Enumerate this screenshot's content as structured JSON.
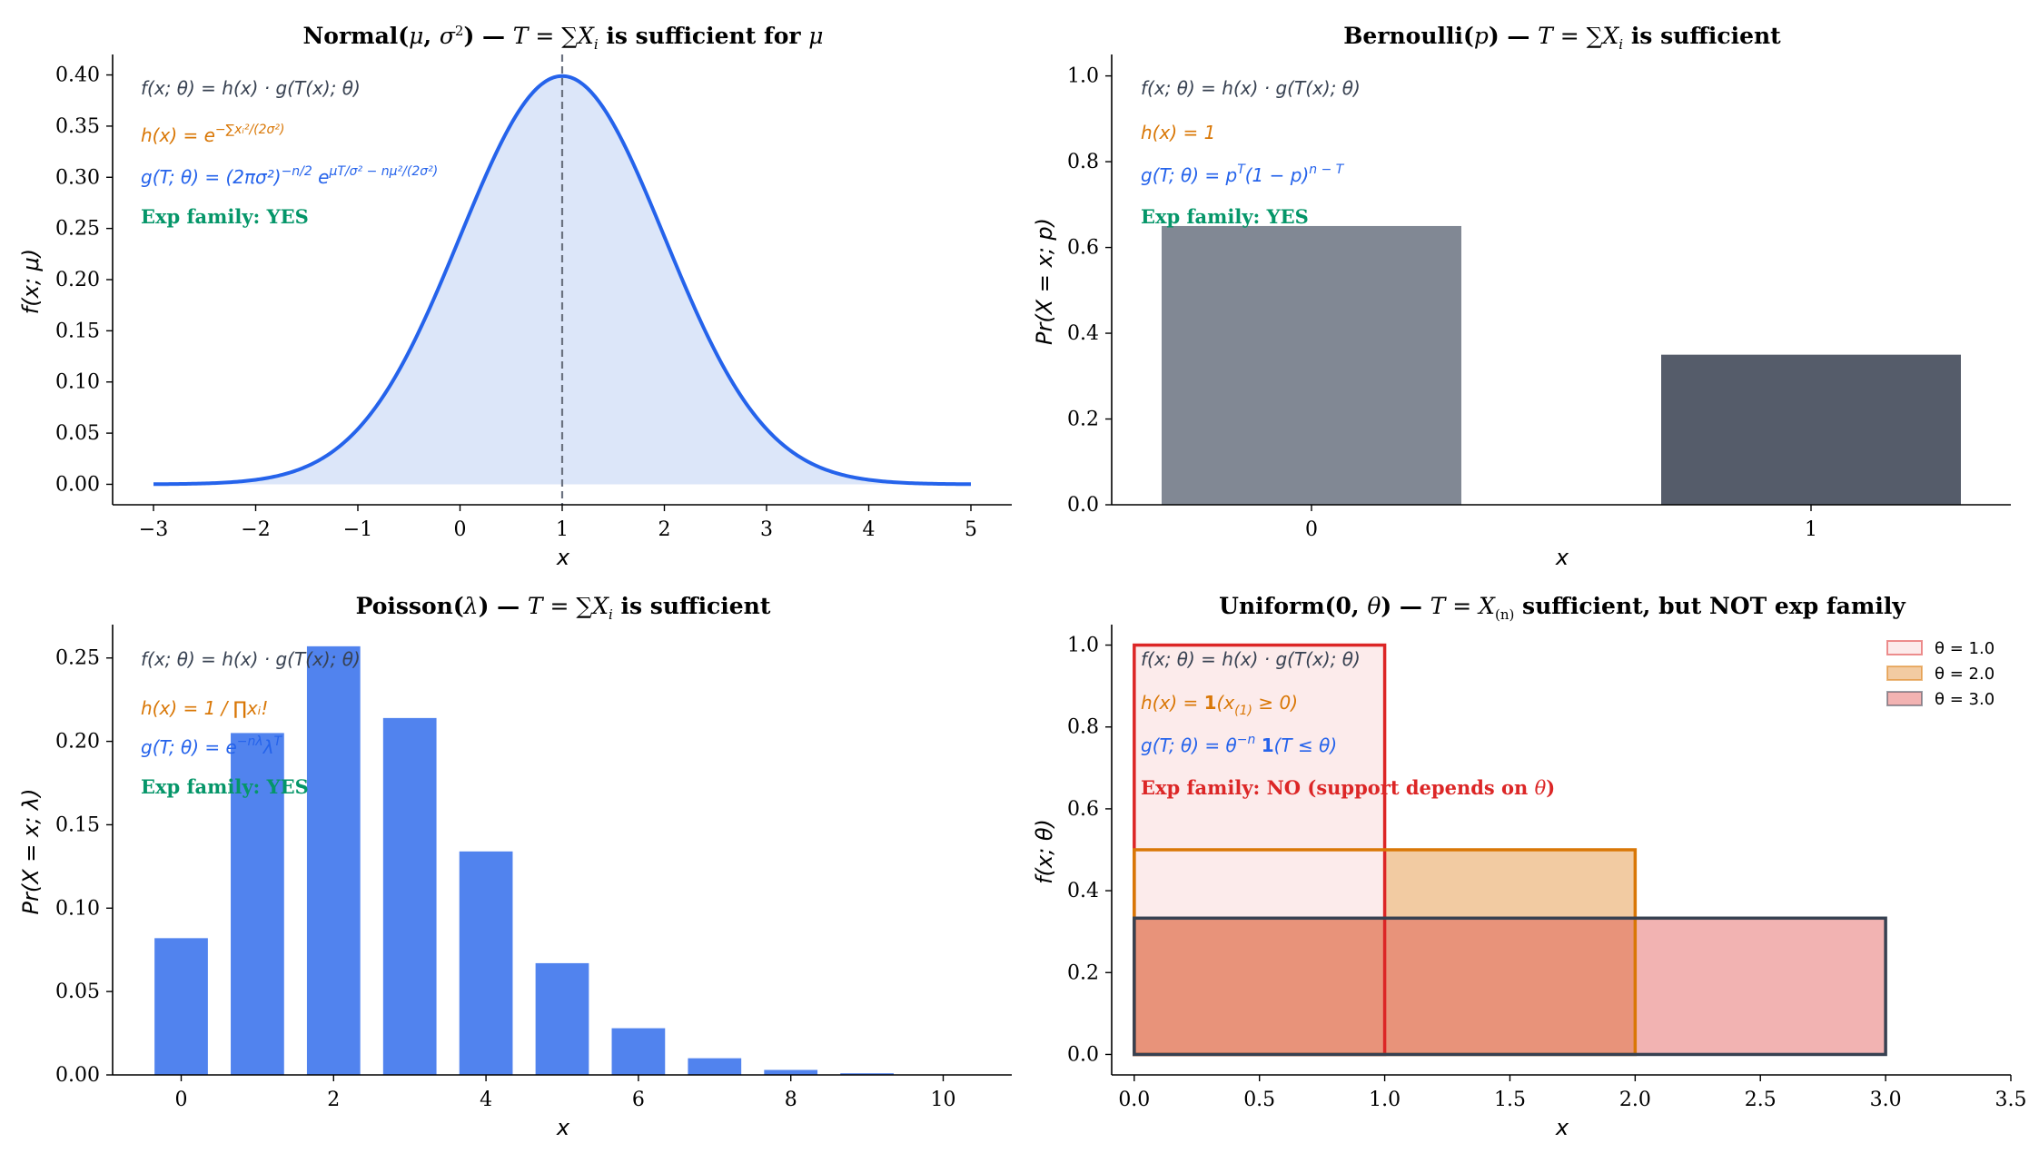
{
  "chart_data": [
    {
      "type": "area",
      "title": "Normal(μ, σ²) — T = ∑Xᵢ is sufficient for μ",
      "xlabel": "x",
      "ylabel": "f(x; μ)",
      "xlim": [
        -3.4,
        5.4
      ],
      "ylim": [
        -0.02,
        0.42
      ],
      "xticks": [
        -3,
        -2,
        -1,
        0,
        1,
        2,
        3,
        4,
        5
      ],
      "xtick_labels": [
        "−3",
        "−2",
        "−1",
        "0",
        "1",
        "2",
        "3",
        "4",
        "5"
      ],
      "yticks": [
        0,
        0.05,
        0.1,
        0.15,
        0.2,
        0.25,
        0.3,
        0.35,
        0.4
      ],
      "ytick_labels": [
        "0.00",
        "0.05",
        "0.10",
        "0.15",
        "0.20",
        "0.25",
        "0.30",
        "0.35",
        "0.40"
      ],
      "series": [
        {
          "distribution": "normal",
          "mu": 1,
          "sigma": 1,
          "x_range": [
            -3,
            5
          ],
          "color": "#2563eb"
        }
      ],
      "vline": {
        "x": 1,
        "style": "dashed"
      },
      "annotations": [
        {
          "text": "f(x; θ) = h(x) · g(T(x); θ)",
          "color": "#374151"
        },
        {
          "text": "h(x) = e^{−∑xᵢ²/(2σ²)}",
          "color": "#d97706"
        },
        {
          "text": "g(T; θ) = (2πσ²)^{−n/2} e^{μT/σ² − nμ²/(2σ²)}",
          "color": "#2563eb"
        },
        {
          "text": "Exp family: YES",
          "color": "#059669",
          "bold": true
        }
      ],
      "grid": false
    },
    {
      "type": "bar",
      "title": "Bernoulli(p) — T = ∑Xᵢ is sufficient",
      "xlabel": "x",
      "ylabel": "Pr(X = x; p)",
      "categories": [
        "0",
        "1"
      ],
      "values": [
        0.65,
        0.35
      ],
      "colors": [
        "#818894",
        "#555c6a"
      ],
      "ylim": [
        0,
        1.05
      ],
      "yticks": [
        0,
        0.2,
        0.4,
        0.6,
        0.8,
        1.0
      ],
      "ytick_labels": [
        "0.0",
        "0.2",
        "0.4",
        "0.6",
        "0.8",
        "1.0"
      ],
      "annotations": [
        {
          "text": "f(x; θ) = h(x) · g(T(x); θ)",
          "color": "#374151"
        },
        {
          "text": "h(x) = 1",
          "color": "#d97706"
        },
        {
          "text": "g(T; θ) = p^T (1 − p)^{n − T}",
          "color": "#2563eb"
        },
        {
          "text": "Exp family: YES",
          "color": "#059669",
          "bold": true
        }
      ],
      "grid": false
    },
    {
      "type": "bar",
      "title": "Poisson(λ) — T = ∑Xᵢ is sufficient",
      "xlabel": "x",
      "ylabel": "Pr(X = x; λ)",
      "categories": [
        0,
        1,
        2,
        3,
        4,
        5,
        6,
        7,
        8,
        9,
        10
      ],
      "values": [
        0.082,
        0.205,
        0.257,
        0.214,
        0.134,
        0.067,
        0.028,
        0.01,
        0.003,
        0.001,
        0.0002
      ],
      "color": "#5183ee",
      "xlim": [
        -0.9,
        10.9
      ],
      "ylim": [
        0,
        0.27
      ],
      "xticks": [
        0,
        2,
        4,
        6,
        8,
        10
      ],
      "yticks": [
        0,
        0.05,
        0.1,
        0.15,
        0.2,
        0.25
      ],
      "ytick_labels": [
        "0.00",
        "0.05",
        "0.10",
        "0.15",
        "0.20",
        "0.25"
      ],
      "annotations": [
        {
          "text": "f(x; θ) = h(x) · g(T(x); θ)",
          "color": "#374151"
        },
        {
          "text": "h(x) = 1 / ∏xᵢ!",
          "color": "#d97706"
        },
        {
          "text": "g(T; θ) = e^{−nλ} λ^T",
          "color": "#2563eb"
        },
        {
          "text": "Exp family: YES",
          "color": "#059669",
          "bold": true
        }
      ],
      "grid": false
    },
    {
      "type": "area",
      "title": "Uniform(0, θ) — T = X₍ₙ₎ sufficient, but NOT exp family",
      "xlabel": "x",
      "ylabel": "f(x; θ)",
      "xlim": [
        -0.09,
        3.5
      ],
      "ylim": [
        -0.05,
        1.05
      ],
      "xticks": [
        0,
        0.5,
        1,
        1.5,
        2,
        2.5,
        3,
        3.5
      ],
      "xtick_labels": [
        "0.0",
        "0.5",
        "1.0",
        "1.5",
        "2.0",
        "2.5",
        "3.0",
        "3.5"
      ],
      "yticks": [
        0,
        0.2,
        0.4,
        0.6,
        0.8,
        1.0
      ],
      "ytick_labels": [
        "0.0",
        "0.2",
        "0.4",
        "0.6",
        "0.8",
        "1.0"
      ],
      "series": [
        {
          "name": "θ = 1.0",
          "theta": 1.0,
          "density": 1.0,
          "fill": "#fcebeb",
          "edge": "#dc2626"
        },
        {
          "name": "θ = 2.0",
          "theta": 2.0,
          "density": 0.5,
          "fill": "#f2cba2",
          "edge": "#d97706"
        },
        {
          "name": "θ = 3.0",
          "theta": 3.0,
          "density": 0.333,
          "fill": "#f2b3b2",
          "edge": "#374151"
        }
      ],
      "overlap_fill": "#e8937a",
      "legend_position": "top-right",
      "annotations": [
        {
          "text": "f(x; θ) = h(x) · g(T(x); θ)",
          "color": "#374151"
        },
        {
          "text": "h(x) = 𝟏(x₍₁₎ ≥ 0)",
          "color": "#d97706"
        },
        {
          "text": "g(T; θ) = θ^{−n} 𝟏(T ≤ θ)",
          "color": "#2563eb"
        },
        {
          "text": "Exp family: NO  (support depends on θ)",
          "color": "#dc2626",
          "bold": true
        }
      ],
      "grid": false
    }
  ]
}
